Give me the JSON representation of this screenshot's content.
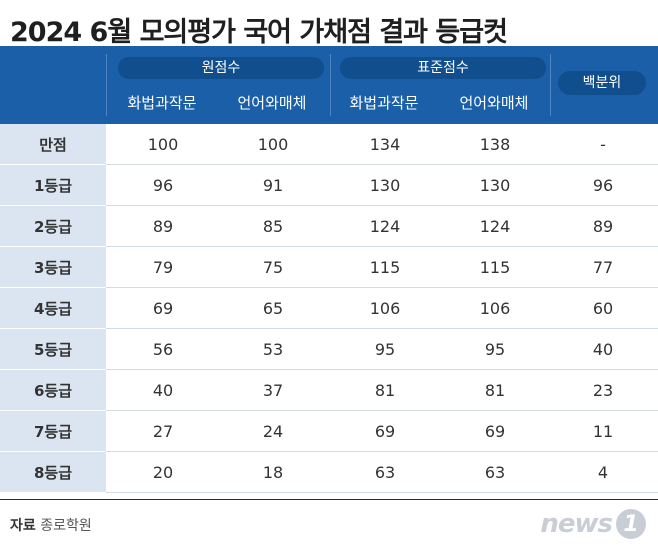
{
  "title": "2024 6월 모의평가 국어 가채점 결과 등급컷",
  "header": {
    "group1": "원점수",
    "group2": "표준점수",
    "percentile": "백분위",
    "sub1": "화법과작문",
    "sub2": "언어와매체",
    "sub3": "화법과작문",
    "sub4": "언어와매체"
  },
  "rows": [
    {
      "label": "만점",
      "v": [
        "100",
        "100",
        "134",
        "138",
        "-"
      ]
    },
    {
      "label": "1등급",
      "v": [
        "96",
        "91",
        "130",
        "130",
        "96"
      ]
    },
    {
      "label": "2등급",
      "v": [
        "89",
        "85",
        "124",
        "124",
        "89"
      ]
    },
    {
      "label": "3등급",
      "v": [
        "79",
        "75",
        "115",
        "115",
        "77"
      ]
    },
    {
      "label": "4등급",
      "v": [
        "69",
        "65",
        "106",
        "106",
        "60"
      ]
    },
    {
      "label": "5등급",
      "v": [
        "56",
        "53",
        "95",
        "95",
        "40"
      ]
    },
    {
      "label": "6등급",
      "v": [
        "40",
        "37",
        "81",
        "81",
        "23"
      ]
    },
    {
      "label": "7등급",
      "v": [
        "27",
        "24",
        "69",
        "69",
        "11"
      ]
    },
    {
      "label": "8등급",
      "v": [
        "20",
        "18",
        "63",
        "63",
        "4"
      ]
    }
  ],
  "source": {
    "label": "자료",
    "text": "종로학원"
  },
  "logo": {
    "text": "news",
    "mark": "1"
  },
  "colors": {
    "header_bg": "#1a5fa8",
    "pill_bg": "#114e8e",
    "label_bg": "#dbe5f1"
  }
}
